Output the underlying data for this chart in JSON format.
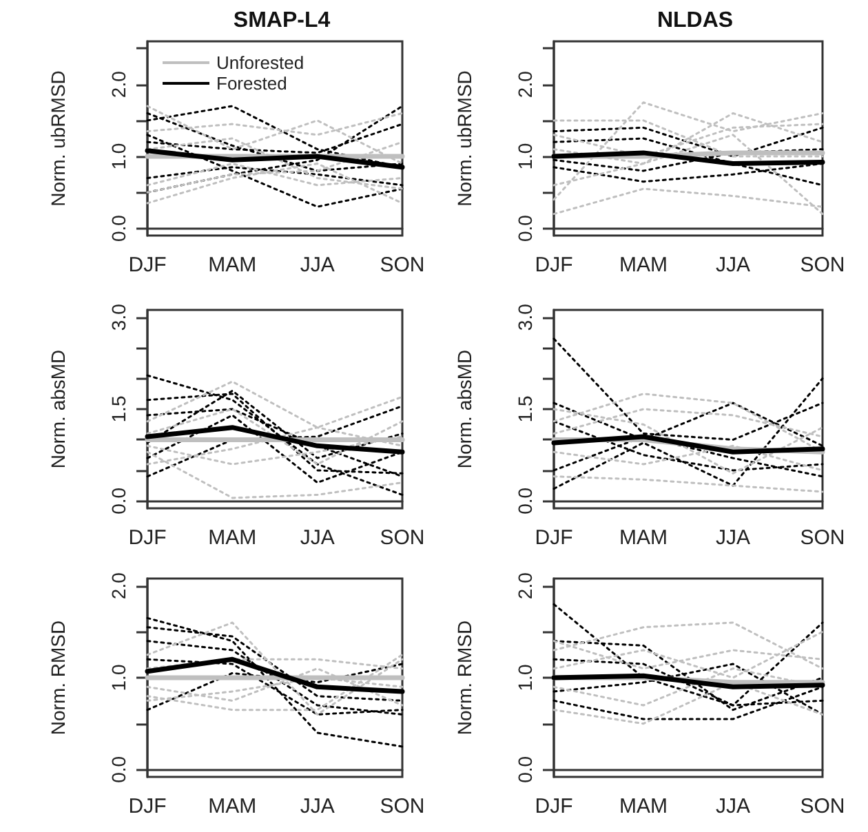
{
  "chart_data": [
    {
      "type": "line",
      "title": "SMAP-L4",
      "ylabel": "Norm. ubRMSD",
      "categories": [
        "DJF",
        "MAM",
        "JJA",
        "SON"
      ],
      "ylim": [
        -0.1,
        2.6
      ],
      "yticks": [
        {
          "value": 0,
          "label": "0.0"
        },
        {
          "value": 0.5,
          "label": null
        },
        {
          "value": 1,
          "label": "1.0"
        },
        {
          "value": 1.5,
          "label": null
        },
        {
          "value": 2,
          "label": "2.0"
        },
        {
          "value": 2.5,
          "label": null
        }
      ],
      "legend": "top left",
      "series": [
        {
          "color": "#000000",
          "line_style": "dotted",
          "values": [
            1.5,
            1.7,
            1.1,
            0.85
          ]
        },
        {
          "color": "#000000",
          "line_style": "dotted",
          "values": [
            0.5,
            0.75,
            0.95,
            1.7
          ]
        },
        {
          "color": "#000000",
          "line_style": "dotted",
          "values": [
            1.3,
            0.8,
            0.3,
            0.55
          ]
        },
        {
          "color": "#000000",
          "line_style": "dotted",
          "values": [
            0.7,
            0.85,
            0.75,
            0.6
          ]
        },
        {
          "color": "#000000",
          "line_style": "dotted",
          "values": [
            1.2,
            1.1,
            1.05,
            1.45
          ]
        },
        {
          "color": "#000000",
          "line_style": "dotted",
          "values": [
            1.6,
            1.15,
            0.8,
            0.9
          ]
        },
        {
          "color": "#bfbfbf",
          "line_style": "dotted",
          "values": [
            0.35,
            0.7,
            0.9,
            0.35
          ]
        },
        {
          "color": "#bfbfbf",
          "line_style": "dotted",
          "values": [
            1.7,
            1.1,
            1.5,
            0.9
          ]
        },
        {
          "color": "#bfbfbf",
          "line_style": "dotted",
          "values": [
            0.6,
            0.9,
            0.6,
            0.7
          ]
        },
        {
          "color": "#bfbfbf",
          "line_style": "dotted",
          "values": [
            1.35,
            1.45,
            1.3,
            1.6
          ]
        },
        {
          "color": "#bfbfbf",
          "line_style": "dotted",
          "values": [
            0.5,
            0.75,
            0.8,
            1.2
          ]
        },
        {
          "color": "#bfbfbf",
          "line_style": "dotted",
          "values": [
            1.1,
            1.25,
            0.7,
            0.55
          ]
        },
        {
          "name": "Unforested",
          "color": "#bfbfbf",
          "line_style": "solid",
          "values": [
            1.0,
            1.0,
            1.0,
            1.0
          ]
        },
        {
          "name": "Forested",
          "color": "#000000",
          "line_style": "solid",
          "values": [
            1.08,
            0.95,
            1.0,
            0.85
          ]
        }
      ]
    },
    {
      "type": "line",
      "title": "NLDAS",
      "ylabel": "Norm. ubRMSD",
      "categories": [
        "DJF",
        "MAM",
        "JJA",
        "SON"
      ],
      "ylim": [
        -0.1,
        2.6
      ],
      "yticks": [
        {
          "value": 0,
          "label": "0.0"
        },
        {
          "value": 0.5,
          "label": null
        },
        {
          "value": 1,
          "label": "1.0"
        },
        {
          "value": 1.5,
          "label": null
        },
        {
          "value": 2,
          "label": "2.0"
        },
        {
          "value": 2.5,
          "label": null
        }
      ],
      "series": [
        {
          "color": "#000000",
          "line_style": "dotted",
          "values": [
            1.35,
            1.4,
            1.0,
            1.4
          ]
        },
        {
          "color": "#000000",
          "line_style": "dotted",
          "values": [
            0.85,
            0.65,
            0.75,
            0.9
          ]
        },
        {
          "color": "#000000",
          "line_style": "dotted",
          "values": [
            1.2,
            1.25,
            0.9,
            0.6
          ]
        },
        {
          "color": "#000000",
          "line_style": "dotted",
          "values": [
            0.95,
            0.8,
            1.05,
            1.1
          ]
        },
        {
          "color": "#bfbfbf",
          "line_style": "dotted",
          "values": [
            1.5,
            1.5,
            1.0,
            1.0
          ]
        },
        {
          "color": "#bfbfbf",
          "line_style": "dotted",
          "values": [
            0.2,
            0.55,
            0.45,
            0.3
          ]
        },
        {
          "color": "#bfbfbf",
          "line_style": "dotted",
          "values": [
            0.4,
            1.75,
            1.35,
            1.6
          ]
        },
        {
          "color": "#bfbfbf",
          "line_style": "dotted",
          "values": [
            1.1,
            0.9,
            1.6,
            1.2
          ]
        },
        {
          "color": "#bfbfbf",
          "line_style": "dotted",
          "values": [
            0.6,
            0.9,
            1.3,
            0.2
          ]
        },
        {
          "color": "#bfbfbf",
          "line_style": "dotted",
          "values": [
            1.3,
            1.0,
            1.4,
            1.45
          ]
        },
        {
          "color": "#bfbfbf",
          "line_style": "solid",
          "values": [
            1.0,
            1.0,
            1.05,
            1.05
          ]
        },
        {
          "color": "#000000",
          "line_style": "solid",
          "values": [
            1.0,
            1.05,
            0.9,
            0.92
          ]
        }
      ]
    },
    {
      "type": "line",
      "ylabel": "Norm. absMD",
      "categories": [
        "DJF",
        "MAM",
        "JJA",
        "SON"
      ],
      "ylim": [
        -0.12,
        3.12
      ],
      "yticks": [
        {
          "value": 0,
          "label": "0.0"
        },
        {
          "value": 0.5,
          "label": null
        },
        {
          "value": 1,
          "label": null
        },
        {
          "value": 1.5,
          "label": "1.5"
        },
        {
          "value": 2,
          "label": null
        },
        {
          "value": 2.5,
          "label": null
        },
        {
          "value": 3,
          "label": "3.0"
        }
      ],
      "series": [
        {
          "color": "#000000",
          "line_style": "dotted",
          "values": [
            2.05,
            1.65,
            0.6,
            0.1
          ]
        },
        {
          "color": "#000000",
          "line_style": "dotted",
          "values": [
            1.65,
            1.75,
            0.5,
            0.45
          ]
        },
        {
          "color": "#000000",
          "line_style": "dotted",
          "values": [
            0.4,
            1.0,
            1.05,
            1.55
          ]
        },
        {
          "color": "#000000",
          "line_style": "dotted",
          "values": [
            0.7,
            1.4,
            0.3,
            0.8
          ]
        },
        {
          "color": "#000000",
          "line_style": "dotted",
          "values": [
            1.4,
            1.5,
            0.9,
            0.4
          ]
        },
        {
          "color": "#000000",
          "line_style": "dotted",
          "values": [
            0.95,
            1.8,
            0.7,
            1.1
          ]
        },
        {
          "color": "#bfbfbf",
          "line_style": "dotted",
          "values": [
            0.8,
            0.05,
            0.1,
            0.3
          ]
        },
        {
          "color": "#bfbfbf",
          "line_style": "dotted",
          "values": [
            1.3,
            1.95,
            1.2,
            1.7
          ]
        },
        {
          "color": "#bfbfbf",
          "line_style": "dotted",
          "values": [
            0.6,
            0.85,
            1.2,
            0.9
          ]
        },
        {
          "color": "#bfbfbf",
          "line_style": "dotted",
          "values": [
            1.1,
            1.5,
            0.6,
            1.3
          ]
        },
        {
          "color": "#bfbfbf",
          "line_style": "dotted",
          "values": [
            0.9,
            0.6,
            0.8,
            1.05
          ]
        },
        {
          "color": "#bfbfbf",
          "line_style": "solid",
          "values": [
            1.0,
            1.0,
            1.0,
            1.0
          ]
        },
        {
          "color": "#000000",
          "line_style": "solid",
          "values": [
            1.05,
            1.2,
            0.9,
            0.8
          ]
        }
      ]
    },
    {
      "type": "line",
      "ylabel": "Norm. absMD",
      "categories": [
        "DJF",
        "MAM",
        "JJA",
        "SON"
      ],
      "ylim": [
        -0.12,
        3.12
      ],
      "yticks": [
        {
          "value": 0,
          "label": "0.0"
        },
        {
          "value": 0.5,
          "label": null
        },
        {
          "value": 1,
          "label": null
        },
        {
          "value": 1.5,
          "label": "1.5"
        },
        {
          "value": 2,
          "label": null
        },
        {
          "value": 2.5,
          "label": null
        },
        {
          "value": 3,
          "label": "3.0"
        }
      ],
      "series": [
        {
          "color": "#000000",
          "line_style": "dotted",
          "values": [
            2.65,
            1.1,
            1.0,
            1.6
          ]
        },
        {
          "color": "#000000",
          "line_style": "dotted",
          "values": [
            0.2,
            0.95,
            0.25,
            2.0
          ]
        },
        {
          "color": "#000000",
          "line_style": "dotted",
          "values": [
            1.6,
            1.0,
            1.6,
            0.9
          ]
        },
        {
          "color": "#000000",
          "line_style": "dotted",
          "values": [
            0.5,
            1.05,
            0.7,
            0.4
          ]
        },
        {
          "color": "#000000",
          "line_style": "dotted",
          "values": [
            1.3,
            0.75,
            0.5,
            0.6
          ]
        },
        {
          "color": "#bfbfbf",
          "line_style": "dotted",
          "values": [
            1.3,
            1.75,
            1.6,
            0.8
          ]
        },
        {
          "color": "#bfbfbf",
          "line_style": "dotted",
          "values": [
            0.4,
            0.35,
            0.25,
            0.15
          ]
        },
        {
          "color": "#bfbfbf",
          "line_style": "dotted",
          "values": [
            1.1,
            1.5,
            1.4,
            1.05
          ]
        },
        {
          "color": "#bfbfbf",
          "line_style": "dotted",
          "values": [
            0.8,
            0.6,
            0.9,
            0.5
          ]
        },
        {
          "color": "#bfbfbf",
          "line_style": "dotted",
          "values": [
            1.5,
            1.25,
            0.45,
            1.2
          ]
        },
        {
          "color": "#bfbfbf",
          "line_style": "solid",
          "values": [
            1.0,
            1.0,
            0.85,
            0.8
          ]
        },
        {
          "color": "#000000",
          "line_style": "solid",
          "values": [
            0.95,
            1.05,
            0.8,
            0.85
          ]
        }
      ]
    },
    {
      "type": "line",
      "ylabel": "Norm. RMSD",
      "categories": [
        "DJF",
        "MAM",
        "JJA",
        "SON"
      ],
      "ylim": [
        -0.08,
        2.08
      ],
      "yticks": [
        {
          "value": 0,
          "label": "0.0"
        },
        {
          "value": 0.5,
          "label": null
        },
        {
          "value": 1,
          "label": "1.0"
        },
        {
          "value": 1.5,
          "label": null
        },
        {
          "value": 2,
          "label": "2.0"
        }
      ],
      "series": [
        {
          "color": "#000000",
          "line_style": "dotted",
          "values": [
            1.65,
            1.4,
            0.4,
            0.25
          ]
        },
        {
          "color": "#000000",
          "line_style": "dotted",
          "values": [
            0.65,
            1.05,
            0.95,
            1.15
          ]
        },
        {
          "color": "#000000",
          "line_style": "dotted",
          "values": [
            1.4,
            1.3,
            0.7,
            0.6
          ]
        },
        {
          "color": "#000000",
          "line_style": "dotted",
          "values": [
            1.55,
            1.45,
            0.8,
            0.75
          ]
        },
        {
          "color": "#000000",
          "line_style": "dotted",
          "values": [
            1.2,
            1.15,
            0.6,
            0.65
          ]
        },
        {
          "color": "#bfbfbf",
          "line_style": "dotted",
          "values": [
            0.8,
            0.65,
            0.65,
            1.25
          ]
        },
        {
          "color": "#bfbfbf",
          "line_style": "dotted",
          "values": [
            1.25,
            1.6,
            0.6,
            1.2
          ]
        },
        {
          "color": "#bfbfbf",
          "line_style": "dotted",
          "values": [
            0.9,
            0.75,
            1.1,
            0.7
          ]
        },
        {
          "color": "#bfbfbf",
          "line_style": "dotted",
          "values": [
            1.1,
            1.2,
            1.2,
            1.1
          ]
        },
        {
          "color": "#bfbfbf",
          "line_style": "dotted",
          "values": [
            0.75,
            0.85,
            1.0,
            0.9
          ]
        },
        {
          "color": "#bfbfbf",
          "line_style": "solid",
          "values": [
            1.0,
            1.0,
            1.0,
            1.0
          ]
        },
        {
          "color": "#000000",
          "line_style": "solid",
          "values": [
            1.07,
            1.2,
            0.9,
            0.85
          ]
        }
      ]
    },
    {
      "type": "line",
      "ylabel": "Norm. RMSD",
      "categories": [
        "DJF",
        "MAM",
        "JJA",
        "SON"
      ],
      "ylim": [
        -0.08,
        2.08
      ],
      "yticks": [
        {
          "value": 0,
          "label": "0.0"
        },
        {
          "value": 0.5,
          "label": null
        },
        {
          "value": 1,
          "label": "1.0"
        },
        {
          "value": 1.5,
          "label": null
        },
        {
          "value": 2,
          "label": "2.0"
        }
      ],
      "series": [
        {
          "color": "#000000",
          "line_style": "dotted",
          "values": [
            1.8,
            1.0,
            0.7,
            1.6
          ]
        },
        {
          "color": "#000000",
          "line_style": "dotted",
          "values": [
            0.75,
            0.55,
            0.55,
            0.9
          ]
        },
        {
          "color": "#000000",
          "line_style": "dotted",
          "values": [
            1.4,
            1.35,
            0.65,
            1.0
          ]
        },
        {
          "color": "#000000",
          "line_style": "dotted",
          "values": [
            1.2,
            1.15,
            0.7,
            0.75
          ]
        },
        {
          "color": "#000000",
          "line_style": "dotted",
          "values": [
            0.85,
            0.95,
            1.15,
            0.6
          ]
        },
        {
          "color": "#bfbfbf",
          "line_style": "dotted",
          "values": [
            1.3,
            1.55,
            1.6,
            1.1
          ]
        },
        {
          "color": "#bfbfbf",
          "line_style": "dotted",
          "values": [
            0.65,
            0.5,
            0.95,
            0.6
          ]
        },
        {
          "color": "#bfbfbf",
          "line_style": "dotted",
          "values": [
            1.1,
            1.3,
            1.0,
            1.5
          ]
        },
        {
          "color": "#bfbfbf",
          "line_style": "dotted",
          "values": [
            0.9,
            0.7,
            1.1,
            0.9
          ]
        },
        {
          "color": "#bfbfbf",
          "line_style": "dotted",
          "values": [
            1.4,
            1.1,
            1.3,
            1.2
          ]
        },
        {
          "color": "#bfbfbf",
          "line_style": "solid",
          "values": [
            1.0,
            1.0,
            0.95,
            0.95
          ]
        },
        {
          "color": "#000000",
          "line_style": "solid",
          "values": [
            1.0,
            1.02,
            0.9,
            0.92
          ]
        }
      ]
    }
  ]
}
